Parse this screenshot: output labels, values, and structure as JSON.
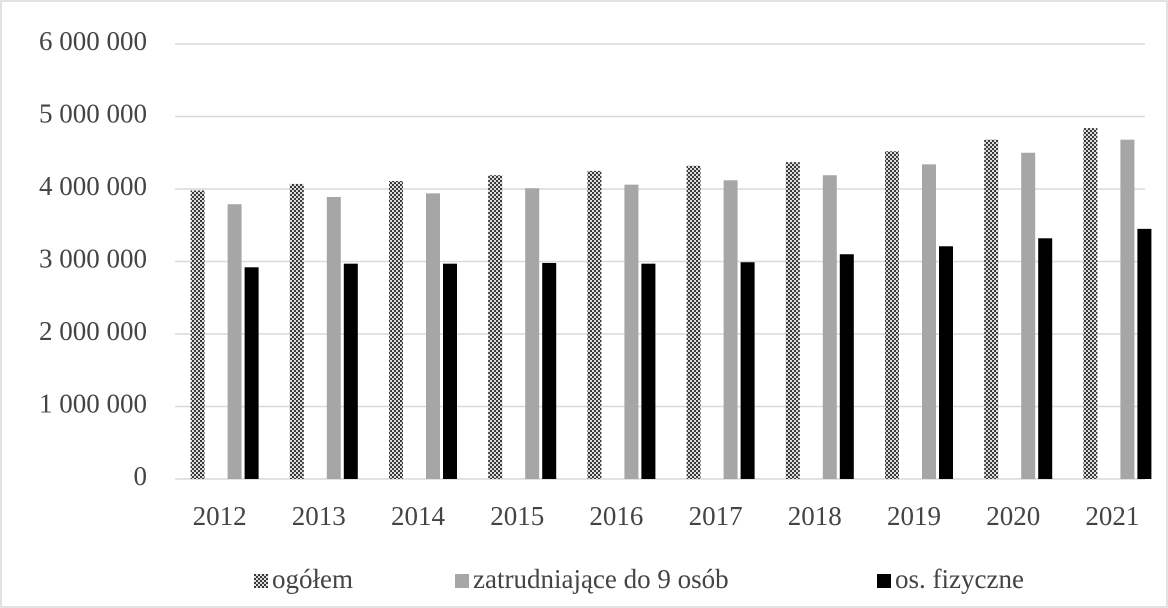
{
  "chart_data": {
    "type": "bar",
    "categories": [
      "2012",
      "2013",
      "2014",
      "2015",
      "2016",
      "2017",
      "2018",
      "2019",
      "2020",
      "2021"
    ],
    "series": [
      {
        "name": "ogółem",
        "color": "#3a3a3a",
        "pattern": "checker",
        "values": [
          3980000,
          4070000,
          4110000,
          4190000,
          4250000,
          4320000,
          4370000,
          4520000,
          4680000,
          4840000
        ]
      },
      {
        "name": "zatrudniające do 9 osób",
        "color": "#a6a6a6",
        "values": [
          3790000,
          3890000,
          3940000,
          4010000,
          4060000,
          4120000,
          4190000,
          4340000,
          4500000,
          4680000
        ]
      },
      {
        "name": "os. fizyczne",
        "color": "#000000",
        "values": [
          2920000,
          2970000,
          2970000,
          2980000,
          2970000,
          2990000,
          3100000,
          3210000,
          3320000,
          3450000
        ]
      }
    ],
    "ylim": [
      0,
      6000000
    ],
    "yticks": [
      0,
      {
        "value": 1000000,
        "label": "1 000 000"
      },
      {
        "value": 2000000,
        "label": "2 000 000"
      },
      {
        "value": 3000000,
        "label": "3 000 000"
      },
      {
        "value": 4000000,
        "label": "4 000 000"
      },
      {
        "value": 5000000,
        "label": "5 000 000"
      },
      {
        "value": 6000000,
        "label": "6 000 000"
      }
    ],
    "grid": true,
    "legend": "bottom"
  }
}
